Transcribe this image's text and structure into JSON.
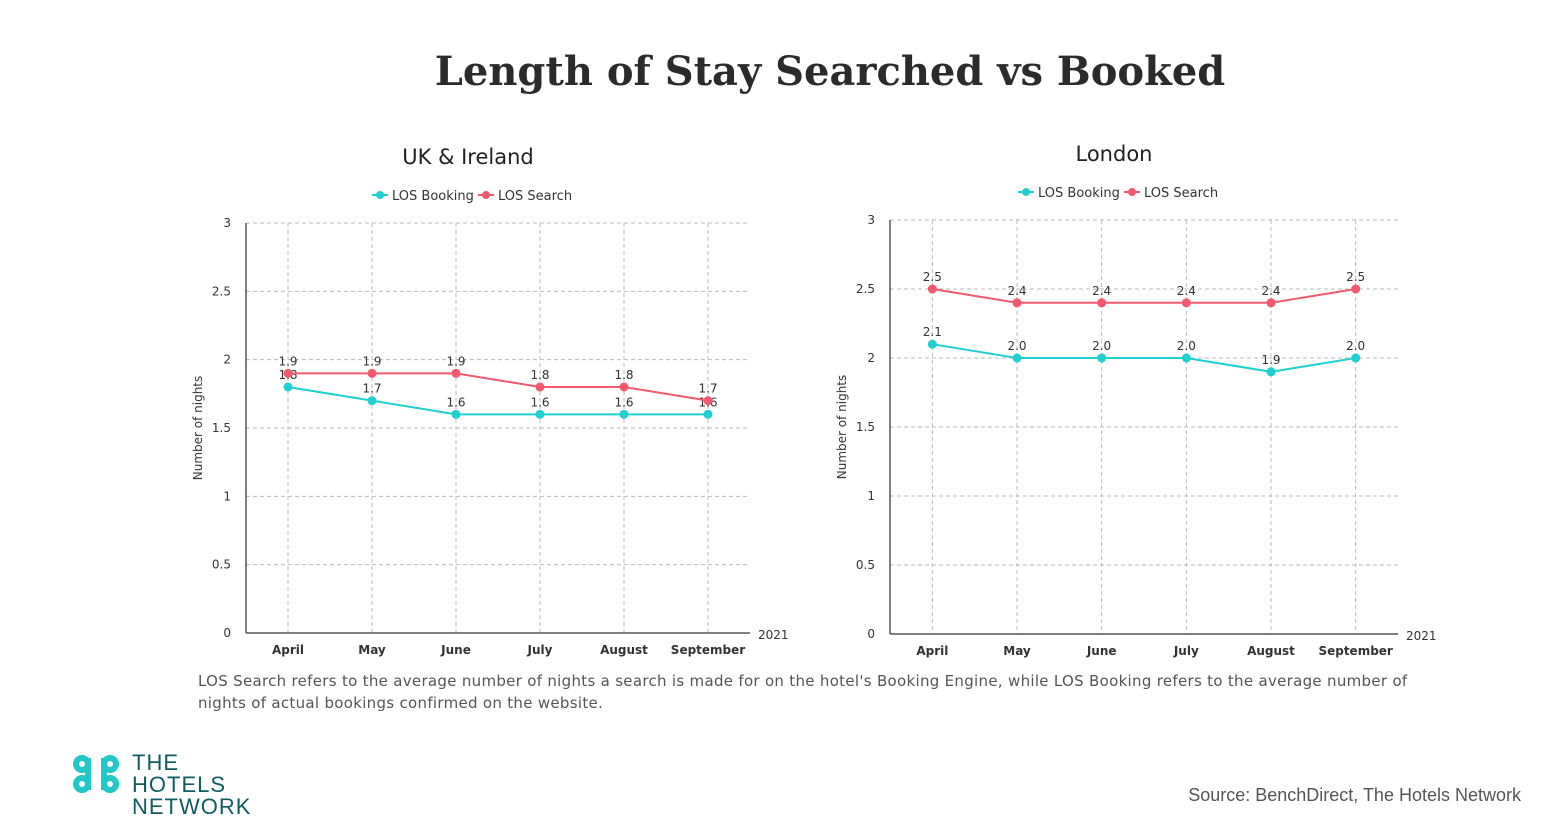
{
  "title": "Length of Stay Searched vs Booked",
  "note": "LOS Search refers to the average number of nights a search is made for on the hotel's Booking Engine, while LOS Booking refers to the average number of nights of actual bookings confirmed on the website.",
  "source": "Source: BenchDirect, The Hotels Network",
  "brand": {
    "line1": "THE",
    "line2": "HOTELS",
    "line3": "NETWORK"
  },
  "colors": {
    "booking": "#1fcfd2",
    "search": "#f2586e"
  },
  "chart_data": [
    {
      "type": "line",
      "title": "UK & Ireland",
      "ylabel": "Number of nights",
      "xlabel": "2021",
      "categories": [
        "April",
        "May",
        "June",
        "July",
        "August",
        "September"
      ],
      "ylim": [
        0,
        3
      ],
      "yticks": [
        "0",
        "0.5",
        "1",
        "1.5",
        "2",
        "2.5",
        "3"
      ],
      "grid": true,
      "legend": "top-center",
      "series": [
        {
          "name": "LOS Booking",
          "values": [
            1.8,
            1.7,
            1.6,
            1.6,
            1.6,
            1.6
          ]
        },
        {
          "name": "LOS Search",
          "values": [
            1.9,
            1.9,
            1.9,
            1.8,
            1.8,
            1.7
          ]
        }
      ]
    },
    {
      "type": "line",
      "title": "London",
      "ylabel": "Number of nights",
      "xlabel": "2021",
      "categories": [
        "April",
        "May",
        "June",
        "July",
        "August",
        "September"
      ],
      "ylim": [
        0,
        3
      ],
      "yticks": [
        "0",
        "0.5",
        "1",
        "1.5",
        "2",
        "2.5",
        "3"
      ],
      "grid": true,
      "legend": "top-center",
      "series": [
        {
          "name": "LOS Booking",
          "values": [
            2.1,
            2.0,
            2.0,
            2.0,
            1.9,
            2.0
          ]
        },
        {
          "name": "LOS Search",
          "values": [
            2.5,
            2.4,
            2.4,
            2.4,
            2.4,
            2.5
          ]
        }
      ]
    }
  ]
}
